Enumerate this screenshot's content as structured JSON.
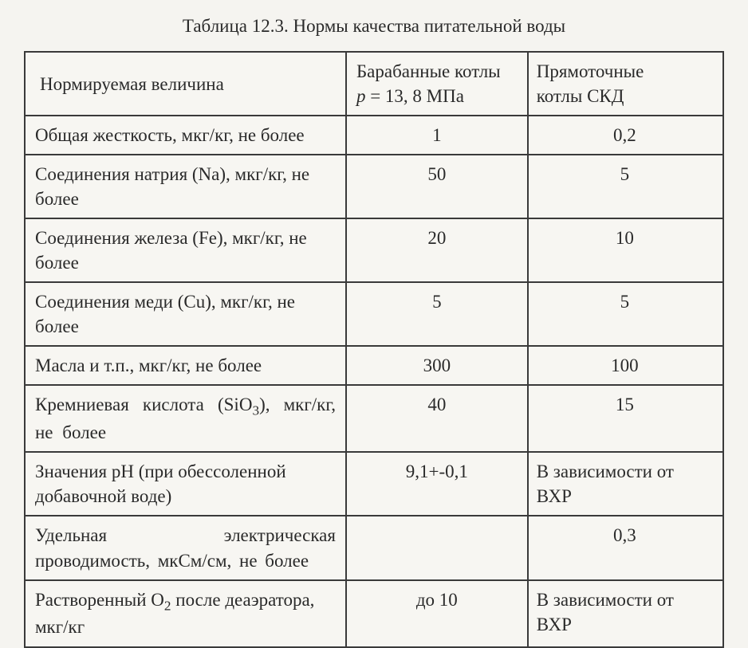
{
  "caption": "Таблица 12.3. Нормы качества питательной воды",
  "table": {
    "header": {
      "col1": "Нормируемая величина",
      "col2_line1": "Барабанные котлы",
      "col2_line2_prefix": "p",
      "col2_line2_rest": " = 13, 8 МПа",
      "col3_line1": "Прямоточные",
      "col3_line2": "котлы СКД"
    },
    "rows": [
      {
        "c1": "Общая жесткость, мкг/кг, не более",
        "c2": "1",
        "c3": "0,2",
        "c3_center": true
      },
      {
        "c1": "Соединения натрия (Na), мкг/кг, не более",
        "c2": "50",
        "c3": "5",
        "c3_center": true
      },
      {
        "c1": "Соединения железа (Fe), мкг/кг, не более",
        "c2": "20",
        "c3": "10",
        "c3_center": true
      },
      {
        "c1": "Соединения меди (Cu), мкг/кг, не более",
        "c2": "5",
        "c3": "5",
        "c3_center": true
      },
      {
        "c1": "Масла и т.п., мкг/кг, не более",
        "c2": "300",
        "c3": "100",
        "c3_center": true
      },
      {
        "c1_html": true,
        "c1_prefix": "Кремниевая кислота (SiO",
        "c1_sub": "3",
        "c1_suffix": "), мкг/кг, не более",
        "c2": "40",
        "c3": "15",
        "c3_center": true,
        "justify_wide": true
      },
      {
        "c1": "Значения pH (при обессоленной добавочной воде)",
        "c2": "9,1+-0,1",
        "c3": "В зависимости от ВХР",
        "c3_center": false
      },
      {
        "c1": "Удельная электрическая проводимость, мкСм/см, не более",
        "c2": "",
        "c3": "0,3",
        "c3_center": true,
        "justify_wide": true
      },
      {
        "c1_html": true,
        "c1_prefix": "Растворенный O",
        "c1_sub": "2",
        "c1_suffix": " после деаэратора, мкг/кг",
        "c2": "до 10",
        "c3": "В зависимости от ВХР",
        "c3_center": false
      }
    ]
  }
}
